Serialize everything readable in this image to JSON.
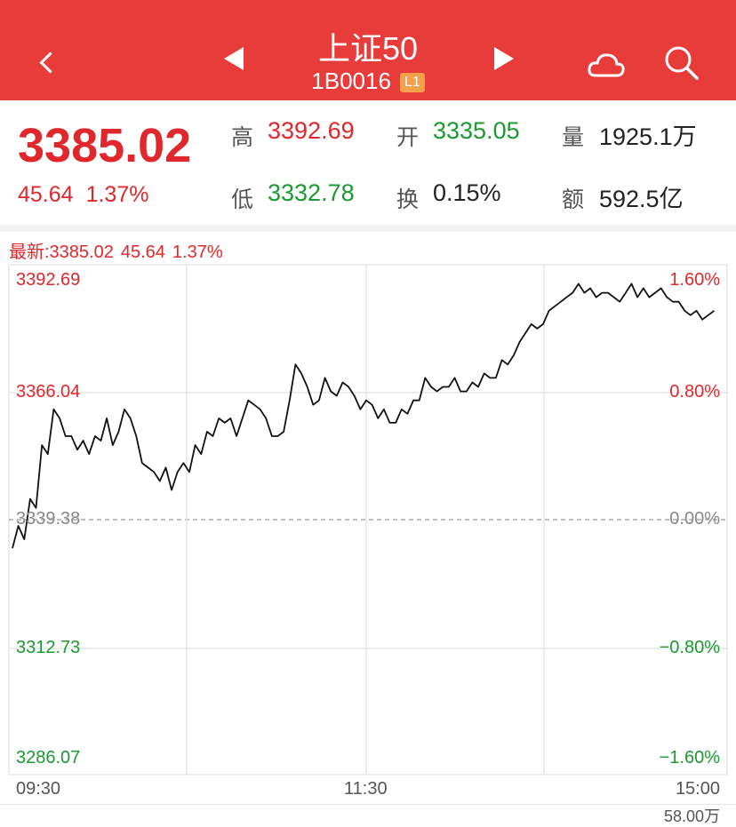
{
  "header": {
    "title": "上证50",
    "code": "1B0016",
    "level_badge": "L1"
  },
  "quote": {
    "price": "3385.02",
    "change": "45.64",
    "change_pct": "1.37%",
    "high_label": "高",
    "high": "3392.69",
    "open_label": "开",
    "open": "3335.05",
    "volume_label": "量",
    "volume": "1925.1万",
    "low_label": "低",
    "low": "3332.78",
    "turnover_label": "换",
    "turnover": "0.15%",
    "amount_label": "额",
    "amount": "592.5亿"
  },
  "latest": {
    "label": "最新:3385.02",
    "change": "45.64",
    "change_pct": "1.37%"
  },
  "chart_data": {
    "type": "line",
    "y_ticks_left": [
      "3392.69",
      "3366.04",
      "3339.38",
      "3312.73",
      "3286.07"
    ],
    "y_ticks_right": [
      "1.60%",
      "0.80%",
      "0.00%",
      "-0.80%",
      "-1.60%"
    ],
    "x_ticks": [
      "09:30",
      "11:30",
      "15:00"
    ],
    "ylim": [
      3286.07,
      3392.69
    ],
    "base": 3339.38,
    "session_minutes": 240,
    "series": [
      {
        "values": [
          3333,
          3338,
          3335,
          3344,
          3342,
          3356,
          3354,
          3364,
          3362,
          3358,
          3358,
          3355,
          3357,
          3354,
          3358,
          3357,
          3362,
          3356,
          3359,
          3364,
          3362,
          3358,
          3352,
          3351,
          3350,
          3348,
          3351,
          3346,
          3350,
          3352,
          3350,
          3356,
          3354,
          3359,
          3358,
          3362,
          3361,
          3362,
          3358,
          3362,
          3366,
          3365,
          3364,
          3362,
          3358,
          3358,
          3359,
          3366,
          3374,
          3372,
          3369,
          3365,
          3366,
          3371,
          3368,
          3367,
          3370,
          3369,
          3367,
          3364,
          3366,
          3365,
          3362,
          3364,
          3361,
          3361,
          3364,
          3363,
          3366,
          3366,
          3371,
          3369,
          3368,
          3369,
          3369,
          3371,
          3368,
          3368,
          3370,
          3369,
          3372,
          3371,
          3371,
          3375,
          3374,
          3376,
          3379,
          3381,
          3383,
          3382,
          3383,
          3386,
          3387,
          3388,
          3389,
          3390,
          3392,
          3390,
          3391,
          3389,
          3390,
          3390,
          3389,
          3388,
          3390,
          3392,
          3389,
          3391,
          3389,
          3390,
          3391,
          3389,
          3388,
          3388,
          3386,
          3385,
          3386,
          3384,
          3385,
          3386
        ]
      }
    ],
    "grid": true,
    "volume_max_label": "58.00万"
  },
  "colors": {
    "header_bg": "#e83c3a",
    "up": "#e0282c",
    "down": "#1a9a2f",
    "line": "#111111",
    "grid": "#e5e5e5"
  }
}
